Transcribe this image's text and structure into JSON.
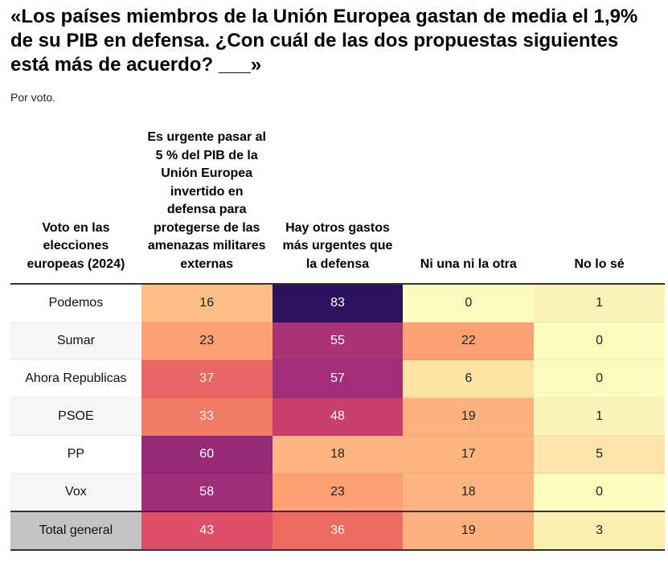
{
  "title": "«Los países miembros de la Unión Europea gastan de media el 1,9% de su PIB en defensa. ¿Con cuál de las dos propuestas siguientes está más de acuerdo? ___»",
  "subtitle": "Por voto.",
  "chart_data": {
    "type": "heatmap",
    "columns": [
      "Voto en las elecciones europeas (2024)",
      "Es urgente pasar al 5 % del PIB de la Unión Europea invertido en defensa para protegerse de las amenazas militares externas",
      "Hay otros gastos más urgentes que la defensa",
      "Ni una ni la otra",
      "No lo sé"
    ],
    "rows": [
      {
        "label": "Podemos",
        "values": [
          16,
          83,
          0,
          1
        ],
        "colors": [
          "#fdbe87",
          "#2c115f",
          "#fcfcbe",
          "#faf4b6"
        ]
      },
      {
        "label": "Sumar",
        "values": [
          23,
          55,
          22,
          0
        ],
        "colors": [
          "#fca172",
          "#ac3277",
          "#fca272",
          "#fcfcbe"
        ]
      },
      {
        "label": "Ahora Republicas",
        "values": [
          37,
          57,
          6,
          0
        ],
        "colors": [
          "#ea6664",
          "#a02e7a",
          "#fde4a6",
          "#fcfcbe"
        ]
      },
      {
        "label": "PSOE",
        "values": [
          33,
          48,
          19,
          1
        ],
        "colors": [
          "#f07a63",
          "#c83e6e",
          "#feb07d",
          "#faf4b6"
        ]
      },
      {
        "label": "PP",
        "values": [
          60,
          18,
          17,
          5
        ],
        "colors": [
          "#962a79",
          "#feb580",
          "#feb67f",
          "#fde4a8"
        ]
      },
      {
        "label": "Vox",
        "values": [
          58,
          23,
          18,
          0
        ],
        "colors": [
          "#9f2e7a",
          "#fca172",
          "#feb580",
          "#fcfcbe"
        ]
      },
      {
        "label": "Total general",
        "values": [
          43,
          36,
          19,
          3
        ],
        "colors": [
          "#dd4f68",
          "#ec6b63",
          "#feb07d",
          "#fcf0b0"
        ]
      }
    ]
  }
}
